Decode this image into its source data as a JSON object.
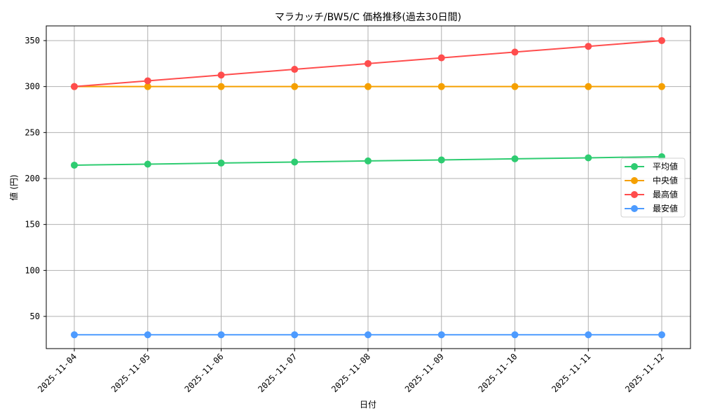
{
  "chart_data": {
    "type": "line",
    "title": "マラカッチ/BW5/C 価格推移(過去30日間)",
    "xlabel": "日付",
    "ylabel": "値 (円)",
    "categories": [
      "2025-11-04",
      "2025-11-05",
      "2025-11-06",
      "2025-11-07",
      "2025-11-08",
      "2025-11-09",
      "2025-11-10",
      "2025-11-11",
      "2025-11-12"
    ],
    "y_ticks": [
      50,
      100,
      150,
      200,
      250,
      300,
      350
    ],
    "ylim": [
      13,
      365
    ],
    "grid": true,
    "legend_position": "center right",
    "series": [
      {
        "name": "平均値",
        "color": "#2ecc71",
        "values": [
          214.5,
          215.6,
          216.8,
          217.9,
          219.1,
          220.2,
          221.4,
          222.5,
          223.7
        ]
      },
      {
        "name": "中央値",
        "color": "#f5a000",
        "values": [
          300,
          300,
          300,
          300,
          300,
          300,
          300,
          300,
          300
        ]
      },
      {
        "name": "最高値",
        "color": "#ff4d4d",
        "values": [
          300,
          306.25,
          312.5,
          318.75,
          325,
          331.25,
          337.5,
          343.75,
          350
        ]
      },
      {
        "name": "最安値",
        "color": "#4d9bff",
        "values": [
          30,
          30,
          30,
          30,
          30,
          30,
          30,
          30,
          30
        ]
      }
    ]
  }
}
